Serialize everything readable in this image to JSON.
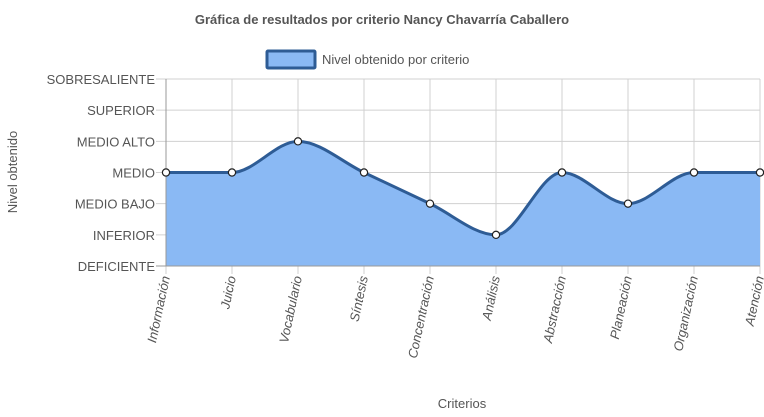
{
  "colors": {
    "fill": "#8ab9f4",
    "line": "#2e5c95",
    "legend_border": "#2e5c95",
    "grid": "#d0d0d0",
    "axis": "#999999",
    "text": "#555555"
  },
  "chart_data": {
    "type": "area",
    "title": "Gráfica de resultados por criterio Nancy Chavarría Caballero",
    "xlabel": "Criterios",
    "ylabel": "Nivel obtenido",
    "legend_position": "top",
    "grid": true,
    "curve": "smooth",
    "y_levels": [
      "DEFICIENTE",
      "INFERIOR",
      "MEDIO BAJO",
      "MEDIO",
      "MEDIO ALTO",
      "SUPERIOR",
      "SOBRESALIENTE"
    ],
    "ylim": [
      0,
      6
    ],
    "categories": [
      "Información",
      "Juicio",
      "Vocabulario",
      "Síntesis",
      "Concentración",
      "Análisis",
      "Abstracción",
      "Planeación",
      "Organización",
      "Atención"
    ],
    "series": [
      {
        "name": "Nivel obtenido por criterio",
        "values": [
          3,
          3,
          4,
          3,
          2,
          1,
          3,
          2,
          3,
          3
        ]
      }
    ]
  }
}
